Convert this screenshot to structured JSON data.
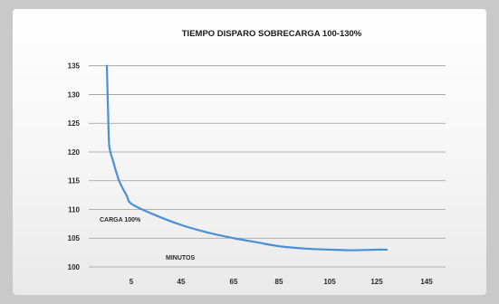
{
  "chart_data": {
    "type": "line",
    "title": "TIEMPO DISPARO SOBRECARGA 100-130%",
    "xlabel": "MINUTOS",
    "ylabel": "",
    "x_ticks": [
      "5",
      "45",
      "65",
      "85",
      "105",
      "125",
      "145"
    ],
    "y_ticks": [
      "100",
      "105",
      "110",
      "115",
      "120",
      "125",
      "130",
      "135"
    ],
    "ylim": [
      100,
      137
    ],
    "grid": true,
    "annotations": [
      {
        "text": "CARGA 100%",
        "x_label": "5",
        "y": 108
      },
      {
        "text": "MINUTOS",
        "x_label": "45",
        "y": 101.5
      }
    ],
    "series": [
      {
        "color": "#4a90d9",
        "points": [
          {
            "x_pos": 0.0,
            "y": 135
          },
          {
            "x_pos": 0.05,
            "y": 127
          },
          {
            "x_pos": 0.1,
            "y": 121
          },
          {
            "x_pos": 0.25,
            "y": 118.5
          },
          {
            "x_pos": 0.5,
            "y": 115
          },
          {
            "x_pos": 0.8,
            "y": 112.5
          },
          {
            "x_pos": 1.0,
            "y": 111
          },
          {
            "x_pos": 1.4,
            "y": 109.3
          },
          {
            "x_pos": 2.0,
            "y": 107.3
          },
          {
            "x_pos": 2.5,
            "y": 106
          },
          {
            "x_pos": 3.0,
            "y": 105
          },
          {
            "x_pos": 3.5,
            "y": 104.3
          },
          {
            "x_pos": 4.0,
            "y": 103.6
          },
          {
            "x_pos": 4.5,
            "y": 103.2
          },
          {
            "x_pos": 5.0,
            "y": 103.0
          },
          {
            "x_pos": 5.5,
            "y": 102.9
          },
          {
            "x_pos": 6.0,
            "y": 103.0
          },
          {
            "x_pos": 6.2,
            "y": 103.0
          }
        ]
      }
    ]
  }
}
